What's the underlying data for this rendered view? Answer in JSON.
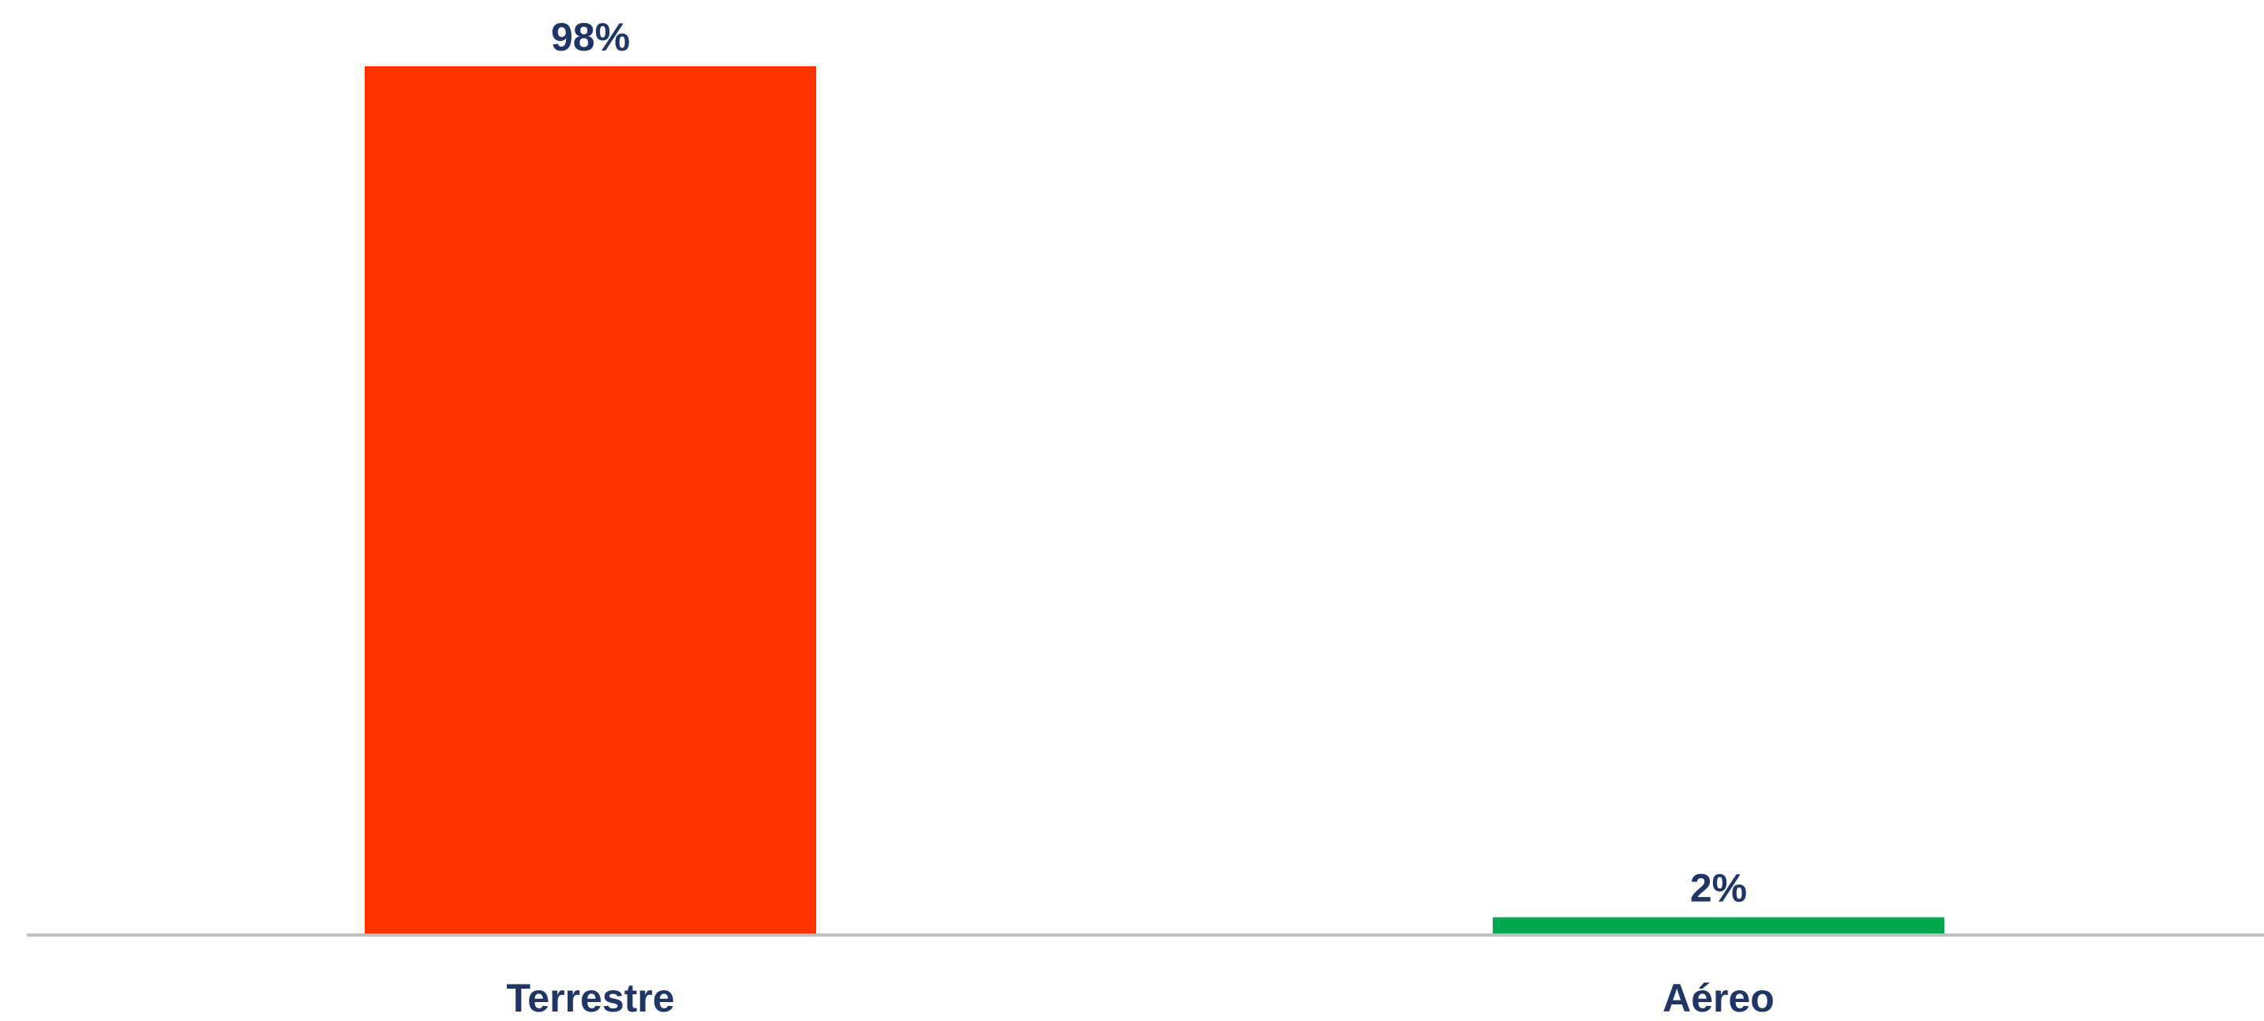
{
  "chart_data": {
    "type": "bar",
    "categories": [
      "Terrestre",
      "Aéreo"
    ],
    "values": [
      98,
      2
    ],
    "data_labels": [
      "98%",
      "2%"
    ],
    "unit": "%",
    "title": "",
    "xlabel": "",
    "ylabel": "",
    "ylim": [
      0,
      98
    ],
    "grid": false,
    "legend": "none",
    "colors": {
      "bars": [
        "#FF3300",
        "#00A84F"
      ],
      "text": "#1F3566",
      "axis": "#BFBFBF"
    }
  }
}
